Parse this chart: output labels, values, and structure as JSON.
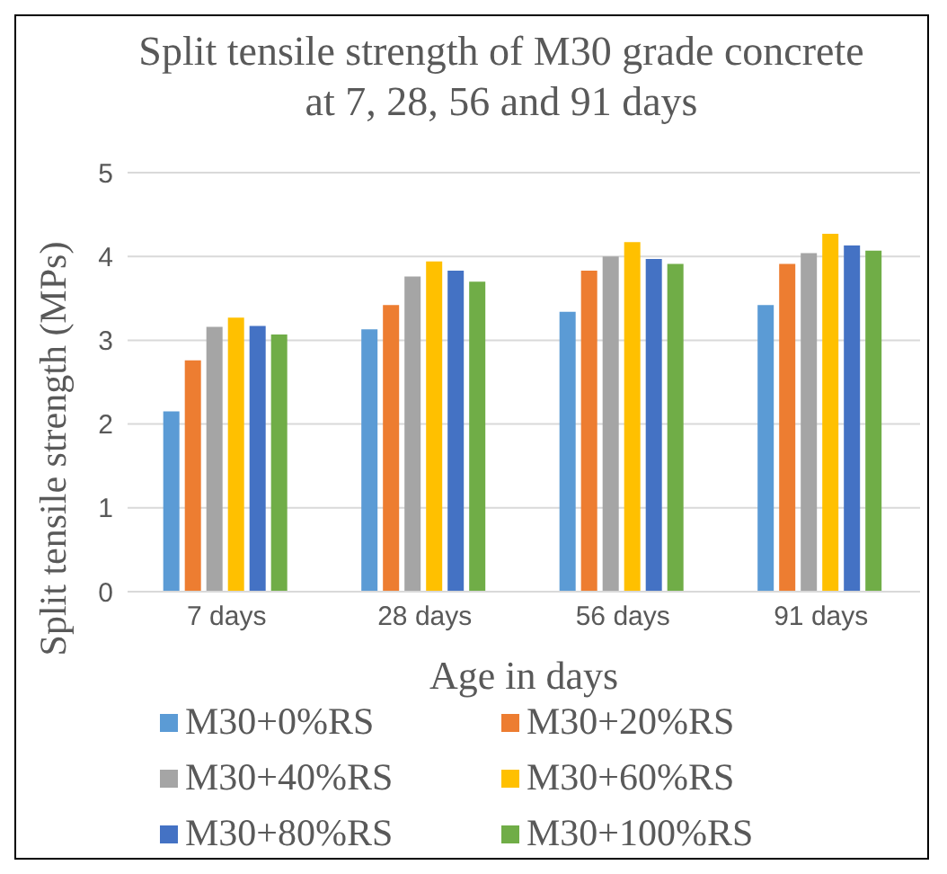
{
  "chart_data": {
    "type": "bar",
    "title": "Split tensile strength of M30 grade concrete at 7, 28, 56 and 91 days",
    "xlabel": "Age in days",
    "ylabel": "Split tensile strength (MPs)",
    "categories": [
      "7 days",
      "28 days",
      "56 days",
      "91 days"
    ],
    "series": [
      {
        "name": "M30+0%RS",
        "color": "#5b9bd5",
        "values": [
          2.15,
          3.13,
          3.34,
          3.42
        ]
      },
      {
        "name": "M30+20%RS",
        "color": "#ed7d31",
        "values": [
          2.76,
          3.42,
          3.83,
          3.91
        ]
      },
      {
        "name": "M30+40%RS",
        "color": "#a5a5a5",
        "values": [
          3.16,
          3.76,
          4.0,
          4.04
        ]
      },
      {
        "name": "M30+60%RS",
        "color": "#ffc000",
        "values": [
          3.27,
          3.94,
          4.17,
          4.27
        ]
      },
      {
        "name": "M30+80%RS",
        "color": "#4472c4",
        "values": [
          3.17,
          3.83,
          3.97,
          4.13
        ]
      },
      {
        "name": "M30+100%RS",
        "color": "#70ad47",
        "values": [
          3.07,
          3.7,
          3.91,
          4.07
        ]
      }
    ],
    "ylim": [
      0,
      5
    ],
    "yticks": [
      0,
      1,
      2,
      3,
      4,
      5
    ],
    "grid": "y",
    "legend": "bottom"
  }
}
